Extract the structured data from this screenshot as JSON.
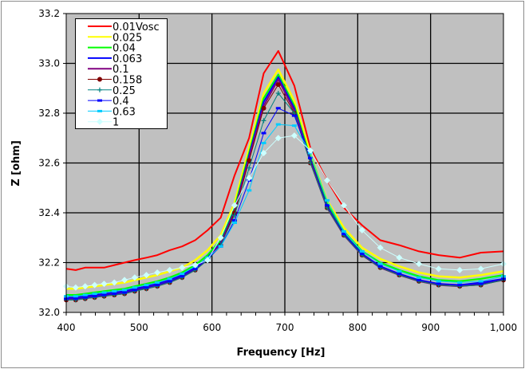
{
  "chart_data": {
    "type": "line",
    "xlabel": "Frequency [Hz]",
    "ylabel": "Z [ohm]",
    "xlim": [
      400,
      1000
    ],
    "ylim": [
      32.0,
      33.2
    ],
    "x_ticks": [
      "400",
      "500",
      "600",
      "700",
      "800",
      "900",
      "1,000"
    ],
    "y_ticks": [
      "32.0",
      "32.2",
      "32.4",
      "32.6",
      "32.8",
      "33.0",
      "33.2"
    ],
    "grid": true,
    "legend_position": "top-left",
    "plot_background": "#C0C0C0",
    "x": [
      400,
      413,
      426,
      439,
      452,
      466,
      480,
      494,
      510,
      525,
      542,
      559,
      577,
      594,
      612,
      631,
      651,
      671,
      691,
      713,
      735,
      758,
      781,
      806,
      831,
      857,
      884,
      911,
      940,
      969,
      1000
    ],
    "series": [
      {
        "name": "0.01Vosc",
        "color": "#FF0000",
        "marker": "none",
        "values": [
          32.175,
          32.17,
          32.18,
          32.18,
          32.18,
          32.19,
          32.2,
          32.21,
          32.22,
          32.23,
          32.25,
          32.265,
          32.29,
          32.33,
          32.38,
          32.55,
          32.7,
          32.96,
          33.05,
          32.91,
          32.66,
          32.53,
          32.42,
          32.35,
          32.29,
          32.27,
          32.245,
          32.23,
          32.22,
          32.24,
          32.245
        ]
      },
      {
        "name": "0.025",
        "color": "#FFFF00",
        "marker": "none",
        "values": [
          32.095,
          32.095,
          32.1,
          32.105,
          32.11,
          32.115,
          32.12,
          32.13,
          32.14,
          32.15,
          32.165,
          32.18,
          32.21,
          32.25,
          32.31,
          32.44,
          32.66,
          32.88,
          32.975,
          32.85,
          32.64,
          32.45,
          32.34,
          32.26,
          32.215,
          32.185,
          32.16,
          32.145,
          32.14,
          32.15,
          32.165
        ]
      },
      {
        "name": "0.04",
        "color": "#00FF00",
        "marker": "none",
        "values": [
          32.07,
          32.07,
          32.075,
          32.08,
          32.085,
          32.09,
          32.095,
          32.105,
          32.115,
          32.125,
          32.14,
          32.16,
          32.19,
          32.23,
          32.29,
          32.42,
          32.64,
          32.86,
          32.955,
          32.83,
          32.62,
          32.435,
          32.325,
          32.245,
          32.2,
          32.17,
          32.145,
          32.13,
          32.125,
          32.135,
          32.15
        ]
      },
      {
        "name": "0.063",
        "color": "#0000FF",
        "marker": "none",
        "values": [
          32.06,
          32.06,
          32.065,
          32.07,
          32.075,
          32.08,
          32.085,
          32.095,
          32.105,
          32.115,
          32.13,
          32.15,
          32.18,
          32.22,
          32.28,
          32.41,
          32.63,
          32.845,
          32.945,
          32.82,
          32.61,
          32.425,
          32.315,
          32.235,
          32.185,
          32.155,
          32.13,
          32.115,
          32.11,
          32.12,
          32.135
        ]
      },
      {
        "name": "0.1",
        "color": "#800080",
        "marker": "none",
        "values": [
          32.055,
          32.055,
          32.06,
          32.065,
          32.07,
          32.075,
          32.08,
          32.09,
          32.1,
          32.11,
          32.125,
          32.145,
          32.175,
          32.215,
          32.275,
          32.405,
          32.62,
          32.83,
          32.935,
          32.81,
          32.605,
          32.42,
          32.31,
          32.23,
          32.18,
          32.15,
          32.125,
          32.11,
          32.105,
          32.115,
          32.13
        ]
      },
      {
        "name": "0.158",
        "color": "#800000",
        "marker": "circle",
        "values": [
          32.05,
          32.05,
          32.055,
          32.06,
          32.065,
          32.07,
          32.075,
          32.085,
          32.095,
          32.105,
          32.12,
          32.14,
          32.17,
          32.21,
          32.27,
          32.4,
          32.61,
          32.82,
          32.915,
          32.8,
          32.6,
          32.42,
          32.31,
          32.23,
          32.18,
          32.15,
          32.125,
          32.11,
          32.105,
          32.11,
          32.13
        ]
      },
      {
        "name": "0.25",
        "color": "#008080",
        "marker": "plus",
        "values": [
          32.05,
          32.05,
          32.055,
          32.06,
          32.065,
          32.07,
          32.075,
          32.085,
          32.095,
          32.105,
          32.12,
          32.14,
          32.17,
          32.21,
          32.27,
          32.39,
          32.58,
          32.77,
          32.88,
          32.8,
          32.6,
          32.42,
          32.31,
          32.23,
          32.18,
          32.15,
          32.125,
          32.11,
          32.105,
          32.11,
          32.13
        ]
      },
      {
        "name": "0.4",
        "color": "#0000FF",
        "marker": "dash",
        "values": [
          32.055,
          32.055,
          32.06,
          32.065,
          32.07,
          32.075,
          32.08,
          32.09,
          32.1,
          32.11,
          32.125,
          32.145,
          32.175,
          32.215,
          32.265,
          32.37,
          32.53,
          32.72,
          32.82,
          32.79,
          32.62,
          32.43,
          32.315,
          32.235,
          32.185,
          32.155,
          32.13,
          32.115,
          32.11,
          32.115,
          32.135
        ]
      },
      {
        "name": "0.63",
        "color": "#00CCFF",
        "marker": "dash",
        "values": [
          32.065,
          32.065,
          32.07,
          32.075,
          32.08,
          32.085,
          32.09,
          32.1,
          32.11,
          32.12,
          32.135,
          32.155,
          32.185,
          32.22,
          32.265,
          32.36,
          32.49,
          32.68,
          32.755,
          32.75,
          32.64,
          32.45,
          32.325,
          32.245,
          32.195,
          32.165,
          32.14,
          32.125,
          32.12,
          32.125,
          32.145
        ]
      },
      {
        "name": "1",
        "color": "#CCFFFF",
        "marker": "diamond",
        "values": [
          32.105,
          32.1,
          32.105,
          32.11,
          32.115,
          32.12,
          32.13,
          32.14,
          32.15,
          32.16,
          32.17,
          32.18,
          32.19,
          32.21,
          32.3,
          32.43,
          32.54,
          32.64,
          32.7,
          32.71,
          32.65,
          32.53,
          32.43,
          32.33,
          32.26,
          32.22,
          32.195,
          32.175,
          32.17,
          32.175,
          32.195
        ]
      }
    ]
  }
}
